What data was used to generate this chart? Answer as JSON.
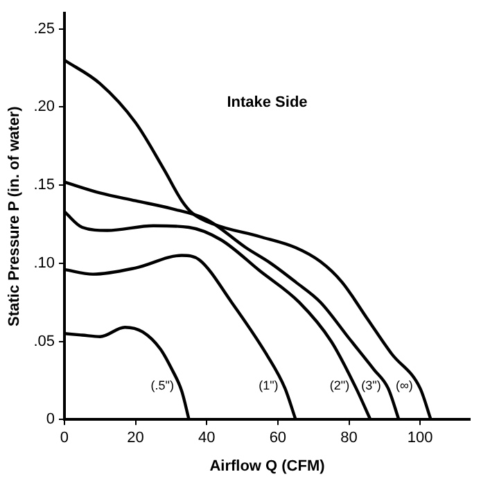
{
  "chart_data": {
    "type": "line",
    "title": "Intake Side",
    "xlabel": "Airflow Q (CFM)",
    "ylabel": "Static Pressure P (in. of water)",
    "series": [
      {
        "name": "(.5\")",
        "color": "#000000",
        "x": [
          0,
          5,
          10,
          17,
          22,
          27,
          30,
          33,
          35
        ],
        "values": [
          0.055,
          0.054,
          0.053,
          0.059,
          0.056,
          0.045,
          0.033,
          0.018,
          0
        ]
      },
      {
        "name": "(1\")",
        "color": "#000000",
        "x": [
          0,
          8,
          20,
          33,
          38,
          47,
          57,
          62,
          65
        ],
        "values": [
          0.096,
          0.093,
          0.097,
          0.105,
          0.102,
          0.075,
          0.041,
          0.02,
          0
        ]
      },
      {
        "name": "(2\")",
        "color": "#000000",
        "x": [
          0,
          5,
          12,
          25,
          35,
          44,
          55,
          66,
          75,
          82,
          86
        ],
        "values": [
          0.133,
          0.123,
          0.121,
          0.124,
          0.123,
          0.115,
          0.095,
          0.075,
          0.05,
          0.02,
          0
        ]
      },
      {
        "name": "(3\")",
        "color": "#000000",
        "x": [
          0,
          10,
          20,
          30,
          40,
          51,
          58,
          65,
          72,
          80,
          87,
          91,
          94
        ],
        "values": [
          0.152,
          0.145,
          0.14,
          0.135,
          0.128,
          0.11,
          0.1,
          0.088,
          0.075,
          0.052,
          0.032,
          0.02,
          0
        ]
      },
      {
        "name": "(∞)",
        "color": "#000000",
        "x": [
          0,
          10,
          20,
          28,
          33,
          36,
          42,
          55,
          65,
          72,
          78,
          85,
          92,
          100,
          103
        ],
        "values": [
          0.23,
          0.215,
          0.19,
          0.16,
          0.14,
          0.132,
          0.125,
          0.117,
          0.11,
          0.101,
          0.088,
          0.065,
          0.042,
          0.02,
          0
        ]
      }
    ],
    "xlim": [
      0,
      114
    ],
    "xticks": [
      0,
      20,
      40,
      60,
      80,
      100
    ],
    "ylim": [
      0,
      0.26
    ],
    "yticks": [
      {
        "value": 0,
        "label": "0"
      },
      {
        "value": 0.05,
        "label": ".05"
      },
      {
        "value": 0.1,
        "label": ".10"
      },
      {
        "value": 0.15,
        "label": ".15"
      },
      {
        "value": 0.2,
        "label": ".20"
      },
      {
        "value": 0.25,
        "label": ".25"
      }
    ],
    "grid": false,
    "legend": false,
    "marker": "none",
    "line_style": "solid"
  }
}
